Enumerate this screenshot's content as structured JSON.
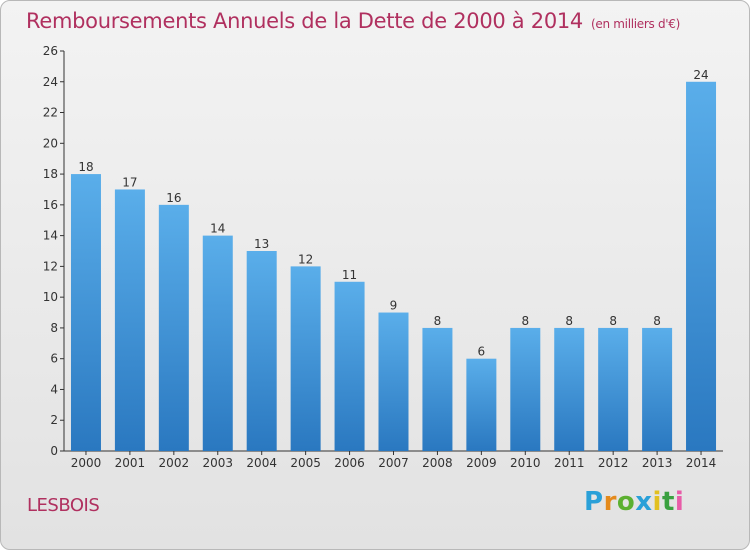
{
  "chart_data": {
    "type": "bar",
    "title": "Remboursements Annuels de la Dette de 2000 à 2014",
    "subtitle": "(en milliers d'€)",
    "categories": [
      "2000",
      "2001",
      "2002",
      "2003",
      "2004",
      "2005",
      "2006",
      "2007",
      "2008",
      "2009",
      "2010",
      "2011",
      "2012",
      "2013",
      "2014"
    ],
    "values": [
      18,
      17,
      16,
      14,
      13,
      12,
      11,
      9,
      8,
      6,
      8,
      8,
      8,
      8,
      24
    ],
    "ylim": [
      0,
      26
    ],
    "yticks": [
      0,
      2,
      4,
      6,
      8,
      10,
      12,
      14,
      16,
      18,
      20,
      22,
      24,
      26
    ],
    "xlabel": "",
    "ylabel": "",
    "grid": false,
    "bar_color": "#3a90d8",
    "bar_color_light": "#5aaeea",
    "bar_color_dark": "#2a78c0"
  },
  "commune": "LESBOIS",
  "logo": {
    "letters": [
      "P",
      "r",
      "o",
      "x",
      "i",
      "t",
      "i"
    ],
    "colors": [
      "#2aa0d8",
      "#e48a1c",
      "#5cb030",
      "#2aa0d8",
      "#e2c020",
      "#3aa040",
      "#e85ca8"
    ]
  },
  "colors": {
    "title": "#b0305f",
    "axis": "#333333"
  }
}
